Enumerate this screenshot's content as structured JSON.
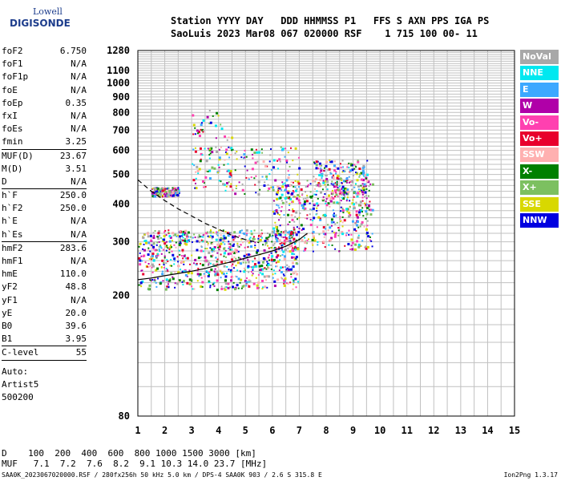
{
  "logo": {
    "line1": "Lowell",
    "line2": "DIGISONDE"
  },
  "header": {
    "line1": "Station YYYY DAY   DDD HHMMSS P1   FFS S AXN PPS IGA PS",
    "line2": "SaoLuis 2023 Mar08 067 020000 RSF    1 715 100 00- 11"
  },
  "params": {
    "g1": [
      {
        "name": "foF2",
        "value": "6.750"
      },
      {
        "name": "foF1",
        "value": "N/A"
      },
      {
        "name": "foF1p",
        "value": "N/A"
      },
      {
        "name": "foE",
        "value": "N/A"
      },
      {
        "name": "foEp",
        "value": "0.35"
      },
      {
        "name": "fxI",
        "value": "N/A"
      },
      {
        "name": "foEs",
        "value": "N/A"
      },
      {
        "name": "fmin",
        "value": "3.25"
      }
    ],
    "g2": [
      {
        "name": "MUF(D)",
        "value": "23.67"
      },
      {
        "name": "M(D)",
        "value": "3.51"
      },
      {
        "name": "D",
        "value": "N/A"
      }
    ],
    "g3": [
      {
        "name": "h`F",
        "value": "250.0"
      },
      {
        "name": "h`F2",
        "value": "250.0"
      },
      {
        "name": "h`E",
        "value": "N/A"
      },
      {
        "name": "h`Es",
        "value": "N/A"
      }
    ],
    "g4": [
      {
        "name": "hmF2",
        "value": "283.6"
      },
      {
        "name": "hmF1",
        "value": "N/A"
      },
      {
        "name": "hmE",
        "value": "110.0"
      },
      {
        "name": "yF2",
        "value": "48.8"
      },
      {
        "name": "yF1",
        "value": "N/A"
      },
      {
        "name": "yE",
        "value": "20.0"
      },
      {
        "name": "B0",
        "value": "39.6"
      },
      {
        "name": "B1",
        "value": "3.95"
      }
    ],
    "g5": [
      {
        "name": "C-level",
        "value": "55"
      }
    ]
  },
  "auto": {
    "l1": "Auto:",
    "l2": "Artist5",
    "l3": "500200"
  },
  "legend": [
    {
      "label": "NoVal",
      "color": "#a8a8a8"
    },
    {
      "label": "NNE",
      "color": "#00e8f0"
    },
    {
      "label": "E",
      "color": "#3ca8ff"
    },
    {
      "label": "W",
      "color": "#b000a8"
    },
    {
      "label": "Vo-",
      "color": "#ff40b0"
    },
    {
      "label": "Vo+",
      "color": "#e8002c"
    },
    {
      "label": "SSW",
      "color": "#ffb0b0"
    },
    {
      "label": "X-",
      "color": "#008000"
    },
    {
      "label": "X+",
      "color": "#7cc060"
    },
    {
      "label": "SSE",
      "color": "#d8d800"
    },
    {
      "label": "NNW",
      "color": "#0000e0"
    }
  ],
  "bottom": {
    "d_line": "D    100  200  400  600  800 1000 1500 3000 [km]",
    "muf_line": "MUF   7.1  7.2  7.6  8.2  9.1 10.3 14.0 23.7 [MHz]"
  },
  "footer": {
    "left": "SAA0K_2023067020000.RSF / 280fx256h 50 kHz 5.0 km / DPS-4 SAA0K 903 / 2.6 S 315.8 E",
    "right": "Ion2Png 1.3.17"
  },
  "chart_data": {
    "type": "scatter",
    "xlabel": "",
    "ylabel": "",
    "xlim": [
      1,
      15
    ],
    "ylim": [
      80,
      1280
    ],
    "y_scale": "log",
    "xticks": [
      "1",
      "2",
      "3",
      "4",
      "5",
      "6",
      "7",
      "8",
      "9",
      "10",
      "11",
      "12",
      "13",
      "14",
      "15"
    ],
    "yticks": [
      {
        "value": 80,
        "label": "80"
      },
      {
        "value": 200,
        "label": "200"
      },
      {
        "value": 300,
        "label": "300"
      },
      {
        "value": 400,
        "label": "400"
      },
      {
        "value": 500,
        "label": "500"
      },
      {
        "value": 600,
        "label": "600"
      },
      {
        "value": 700,
        "label": "700"
      },
      {
        "value": 800,
        "label": "800"
      },
      {
        "value": 900,
        "label": "900"
      },
      {
        "value": 1000,
        "label": "1000"
      },
      {
        "value": 1100,
        "label": "1100"
      },
      {
        "value": 1280,
        "label": "1280"
      }
    ],
    "grid": true,
    "legend_position": "right",
    "traces": [
      {
        "name": "",
        "style": "dashed",
        "x": [
          1.0,
          1.5,
          2.0,
          2.5,
          3.0,
          3.5,
          4.0,
          4.5,
          5.0,
          5.5
        ],
        "y": [
          480,
          440,
          410,
          385,
          365,
          345,
          330,
          315,
          305,
          298
        ]
      },
      {
        "name": "",
        "style": "solid",
        "x": [
          1.0,
          1.5,
          2.0,
          2.5,
          3.0,
          3.5,
          4.0,
          4.5,
          5.0,
          5.5,
          6.0,
          6.5,
          7.0,
          7.3
        ],
        "y": [
          225,
          228,
          232,
          236,
          240,
          245,
          252,
          258,
          265,
          272,
          280,
          290,
          305,
          320
        ]
      }
    ],
    "echo_regions": [
      {
        "x": [
          1.0,
          7.0
        ],
        "y": [
          210,
          330
        ],
        "density": 0.55
      },
      {
        "x": [
          6.0,
          9.7
        ],
        "y": [
          280,
          480
        ],
        "density": 0.5
      },
      {
        "x": [
          1.5,
          2.5
        ],
        "y": [
          425,
          455
        ],
        "density": 0.6
      },
      {
        "x": [
          3.0,
          7.0
        ],
        "y": [
          430,
          620
        ],
        "density": 0.18
      },
      {
        "x": [
          3.0,
          4.5
        ],
        "y": [
          650,
          820
        ],
        "density": 0.08
      },
      {
        "x": [
          7.5,
          9.5
        ],
        "y": [
          430,
          560
        ],
        "density": 0.35
      }
    ]
  }
}
